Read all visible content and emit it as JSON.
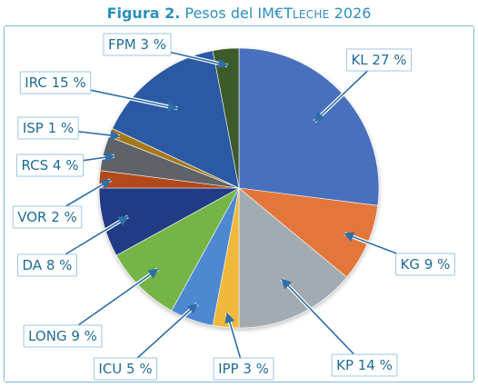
{
  "chart_data": {
    "type": "pie",
    "title_parts": [
      {
        "text": "Figura 2.",
        "style": "bold"
      },
      {
        "text": " Pesos del IM€T",
        "style": "normal"
      },
      {
        "text": "LECHE",
        "style": "smallcaps"
      },
      {
        "text": " 2026",
        "style": "normal"
      }
    ],
    "slices": [
      {
        "label": "KL 27 %",
        "value": 27,
        "color": "#4a6fbd"
      },
      {
        "label": "KG 9 %",
        "value": 9,
        "color": "#e2763a"
      },
      {
        "label": "KP 14 %",
        "value": 14,
        "color": "#a3abb2"
      },
      {
        "label": "IPP 3 %",
        "value": 3,
        "color": "#f0b93a"
      },
      {
        "label": "ICU 5 %",
        "value": 5,
        "color": "#4d88d0"
      },
      {
        "label": "LONG 9 %",
        "value": 9,
        "color": "#74b447"
      },
      {
        "label": "DA 8 %",
        "value": 8,
        "color": "#233b85"
      },
      {
        "label": "VOR 2 %",
        "value": 2,
        "color": "#b2491d"
      },
      {
        "label": "RCS 4 %",
        "value": 4,
        "color": "#5f6468"
      },
      {
        "label": "ISP 1 %",
        "value": 1,
        "color": "#a6781c"
      },
      {
        "label": "IRC 15 %",
        "value": 15,
        "color": "#2a5aa3"
      },
      {
        "label": "FPM 3 %",
        "value": 3,
        "color": "#3d5a2a"
      }
    ],
    "start": "12 o'clock",
    "direction": "clockwise",
    "legend": "none",
    "labels": "outside with callout arrows"
  }
}
